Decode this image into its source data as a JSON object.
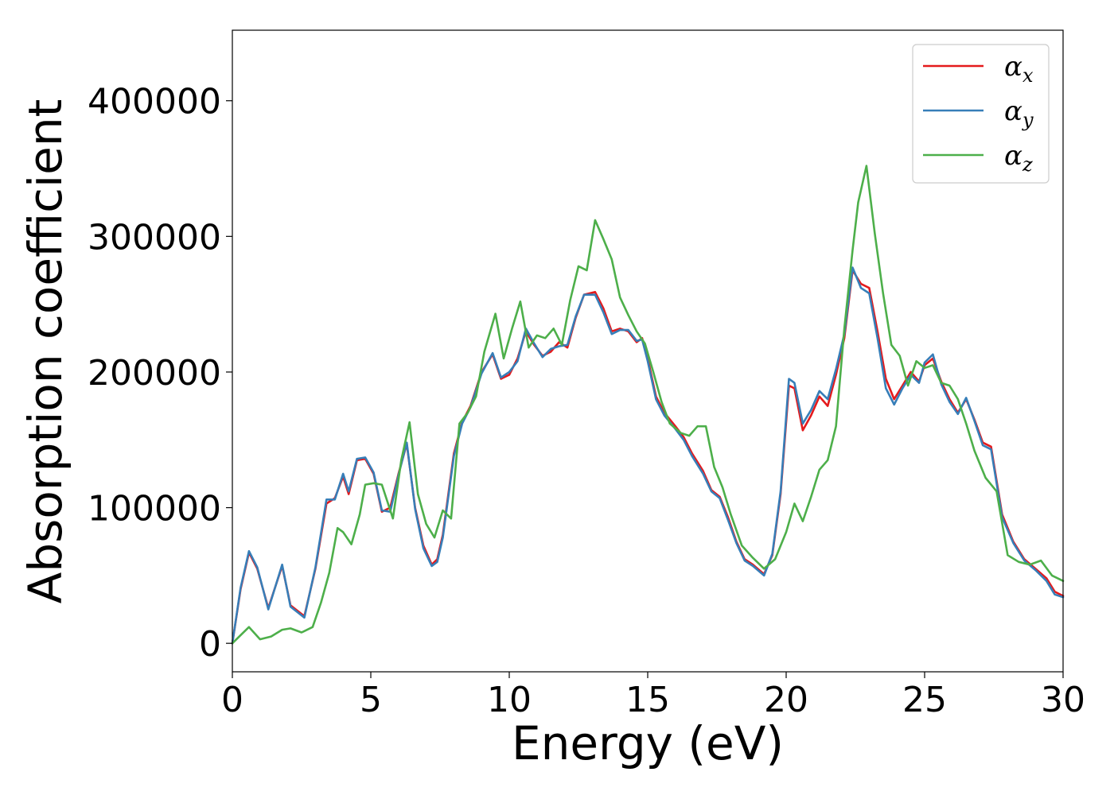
{
  "chart_data": {
    "type": "line",
    "xlabel": "Energy (eV)",
    "ylabel": "Absorption coefficient",
    "xlim": [
      0,
      30
    ],
    "ylim": [
      -21000,
      452000
    ],
    "xticks": [
      0,
      5,
      10,
      15,
      20,
      25,
      30
    ],
    "xtick_labels": [
      "0",
      "5",
      "10",
      "15",
      "20",
      "25",
      "30"
    ],
    "yticks": [
      0,
      100000,
      200000,
      300000,
      400000
    ],
    "ytick_labels": [
      "0",
      "100000",
      "200000",
      "300000",
      "400000"
    ],
    "grid": false,
    "legend_position": "top-right",
    "series": [
      {
        "name": "αx",
        "legend_symbol": "α",
        "legend_subscript": "x",
        "color": "#e41a1c",
        "x": [
          0,
          0.3,
          0.6,
          0.9,
          1.3,
          1.8,
          2.1,
          2.6,
          3.0,
          3.4,
          3.7,
          4.0,
          4.2,
          4.5,
          4.8,
          5.1,
          5.4,
          5.7,
          6.0,
          6.3,
          6.6,
          6.9,
          7.2,
          7.4,
          7.6,
          8.0,
          8.3,
          8.6,
          9.0,
          9.4,
          9.7,
          10.0,
          10.3,
          10.6,
          10.9,
          11.2,
          11.5,
          11.8,
          12.1,
          12.4,
          12.7,
          13.1,
          13.4,
          13.7,
          14.0,
          14.3,
          14.6,
          14.8,
          15.0,
          15.3,
          15.6,
          16.0,
          16.3,
          16.6,
          17.0,
          17.3,
          17.6,
          17.9,
          18.2,
          18.5,
          18.8,
          19.2,
          19.5,
          19.8,
          20.1,
          20.3,
          20.6,
          20.9,
          21.2,
          21.5,
          21.8,
          22.1,
          22.4,
          22.7,
          23.0,
          23.3,
          23.6,
          23.9,
          24.2,
          24.5,
          24.8,
          25.0,
          25.3,
          25.6,
          25.9,
          26.2,
          26.5,
          26.8,
          27.1,
          27.4,
          27.8,
          28.2,
          28.6,
          29.0,
          29.4,
          29.7,
          30.0
        ],
        "y": [
          0,
          40000,
          67000,
          55000,
          26000,
          57000,
          28000,
          20000,
          55000,
          103000,
          107000,
          123000,
          110000,
          135000,
          136000,
          125000,
          97000,
          100000,
          125000,
          147000,
          100000,
          72000,
          58000,
          62000,
          80000,
          140000,
          163000,
          175000,
          200000,
          213000,
          195000,
          198000,
          210000,
          230000,
          220000,
          212000,
          215000,
          222000,
          218000,
          240000,
          257000,
          259000,
          247000,
          230000,
          232000,
          230000,
          222000,
          225000,
          210000,
          182000,
          170000,
          160000,
          152000,
          140000,
          127000,
          113000,
          108000,
          93000,
          75000,
          62000,
          58000,
          51000,
          65000,
          110000,
          190000,
          188000,
          157000,
          168000,
          182000,
          175000,
          198000,
          225000,
          275000,
          265000,
          262000,
          230000,
          195000,
          180000,
          190000,
          200000,
          193000,
          205000,
          210000,
          193000,
          180000,
          170000,
          180000,
          165000,
          148000,
          145000,
          95000,
          75000,
          62000,
          55000,
          48000,
          38000,
          35000
        ]
      },
      {
        "name": "αy",
        "legend_symbol": "α",
        "legend_subscript": "y",
        "color": "#377eb8",
        "x": [
          0,
          0.3,
          0.6,
          0.9,
          1.3,
          1.8,
          2.1,
          2.6,
          3.0,
          3.4,
          3.7,
          4.0,
          4.2,
          4.5,
          4.8,
          5.1,
          5.4,
          5.7,
          6.0,
          6.3,
          6.6,
          6.9,
          7.2,
          7.4,
          7.6,
          8.0,
          8.3,
          8.6,
          9.0,
          9.4,
          9.7,
          10.0,
          10.3,
          10.6,
          10.9,
          11.2,
          11.5,
          11.8,
          12.1,
          12.4,
          12.7,
          13.1,
          13.4,
          13.7,
          14.0,
          14.3,
          14.6,
          14.8,
          15.0,
          15.3,
          15.6,
          16.0,
          16.3,
          16.6,
          17.0,
          17.3,
          17.6,
          17.9,
          18.2,
          18.5,
          18.8,
          19.2,
          19.5,
          19.8,
          20.1,
          20.3,
          20.6,
          20.9,
          21.2,
          21.5,
          21.8,
          22.1,
          22.4,
          22.7,
          23.0,
          23.3,
          23.6,
          23.9,
          24.2,
          24.5,
          24.8,
          25.0,
          25.3,
          25.6,
          25.9,
          26.2,
          26.5,
          26.8,
          27.1,
          27.4,
          27.8,
          28.2,
          28.6,
          29.0,
          29.4,
          29.7,
          30.0
        ],
        "y": [
          0,
          41000,
          68000,
          56000,
          25000,
          58000,
          27000,
          19000,
          56000,
          106000,
          106000,
          125000,
          112000,
          136000,
          137000,
          126000,
          98000,
          97000,
          124000,
          148000,
          99000,
          70000,
          57000,
          60000,
          78000,
          138000,
          162000,
          174000,
          199000,
          214000,
          196000,
          200000,
          208000,
          232000,
          221000,
          211000,
          217000,
          219000,
          220000,
          241000,
          257000,
          257000,
          244000,
          228000,
          231000,
          231000,
          223000,
          224000,
          208000,
          180000,
          168000,
          158000,
          150000,
          138000,
          125000,
          112000,
          107000,
          91000,
          74000,
          61000,
          57000,
          50000,
          66000,
          112000,
          195000,
          192000,
          162000,
          172000,
          186000,
          180000,
          202000,
          228000,
          277000,
          262000,
          258000,
          225000,
          188000,
          176000,
          188000,
          198000,
          192000,
          207000,
          213000,
          191000,
          178000,
          169000,
          181000,
          164000,
          146000,
          143000,
          93000,
          74000,
          61000,
          54000,
          46000,
          36000,
          34000
        ]
      },
      {
        "name": "αz",
        "legend_symbol": "α",
        "legend_subscript": "z",
        "color": "#4daf4a",
        "x": [
          0,
          0.3,
          0.6,
          1.0,
          1.4,
          1.8,
          2.1,
          2.5,
          2.9,
          3.2,
          3.5,
          3.8,
          4.0,
          4.3,
          4.6,
          4.8,
          5.1,
          5.4,
          5.8,
          6.1,
          6.4,
          6.7,
          7.0,
          7.3,
          7.6,
          7.9,
          8.2,
          8.5,
          8.8,
          9.1,
          9.5,
          9.8,
          10.1,
          10.4,
          10.7,
          11.0,
          11.3,
          11.6,
          11.9,
          12.2,
          12.5,
          12.8,
          13.1,
          13.4,
          13.7,
          14.0,
          14.3,
          14.6,
          14.9,
          15.2,
          15.5,
          15.8,
          16.2,
          16.5,
          16.8,
          17.1,
          17.4,
          17.7,
          18.0,
          18.4,
          18.8,
          19.2,
          19.6,
          20.0,
          20.3,
          20.6,
          20.9,
          21.2,
          21.5,
          21.8,
          22.1,
          22.4,
          22.6,
          22.9,
          23.2,
          23.5,
          23.8,
          24.1,
          24.4,
          24.7,
          25.0,
          25.3,
          25.6,
          25.9,
          26.2,
          26.5,
          26.8,
          27.2,
          27.6,
          28.0,
          28.4,
          28.8,
          29.2,
          29.6,
          30.0
        ],
        "y": [
          0,
          6000,
          12000,
          3000,
          5000,
          10000,
          11000,
          8000,
          12000,
          30000,
          52000,
          85000,
          82000,
          73000,
          95000,
          117000,
          118000,
          117000,
          92000,
          135000,
          163000,
          110000,
          88000,
          78000,
          98000,
          92000,
          162000,
          170000,
          182000,
          215000,
          243000,
          210000,
          232000,
          252000,
          218000,
          227000,
          225000,
          232000,
          220000,
          253000,
          278000,
          275000,
          312000,
          298000,
          283000,
          255000,
          242000,
          230000,
          221000,
          200000,
          178000,
          162000,
          155000,
          153000,
          160000,
          160000,
          130000,
          115000,
          95000,
          72000,
          63000,
          55000,
          62000,
          82000,
          103000,
          90000,
          108000,
          128000,
          135000,
          160000,
          232000,
          290000,
          325000,
          352000,
          302000,
          258000,
          220000,
          212000,
          190000,
          208000,
          203000,
          205000,
          192000,
          190000,
          180000,
          162000,
          142000,
          122000,
          112000,
          65000,
          60000,
          58000,
          61000,
          50000,
          46000
        ]
      }
    ]
  }
}
